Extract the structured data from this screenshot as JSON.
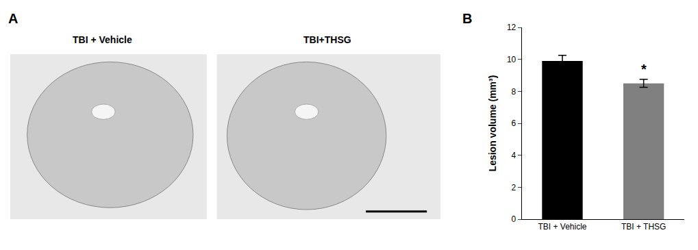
{
  "chart_data": {
    "type": "bar",
    "categories": [
      "TBI + Vehicle",
      "TBI + THSG"
    ],
    "values": [
      9.9,
      8.5
    ],
    "errors": [
      0.35,
      0.25
    ],
    "colors": [
      "#000000",
      "#808080"
    ],
    "ylabel": "Lesion volume (mm³)",
    "ylim": [
      0,
      12
    ],
    "yticks": [
      0,
      2,
      4,
      6,
      8,
      10,
      12
    ],
    "grid": false,
    "annotations": [
      {
        "text": "A"
      },
      {
        "text": "TBI + Vehicle"
      },
      {
        "text": "TBI+THSG"
      },
      {
        "text": "B"
      },
      {
        "text": "*",
        "x": 1
      }
    ]
  }
}
